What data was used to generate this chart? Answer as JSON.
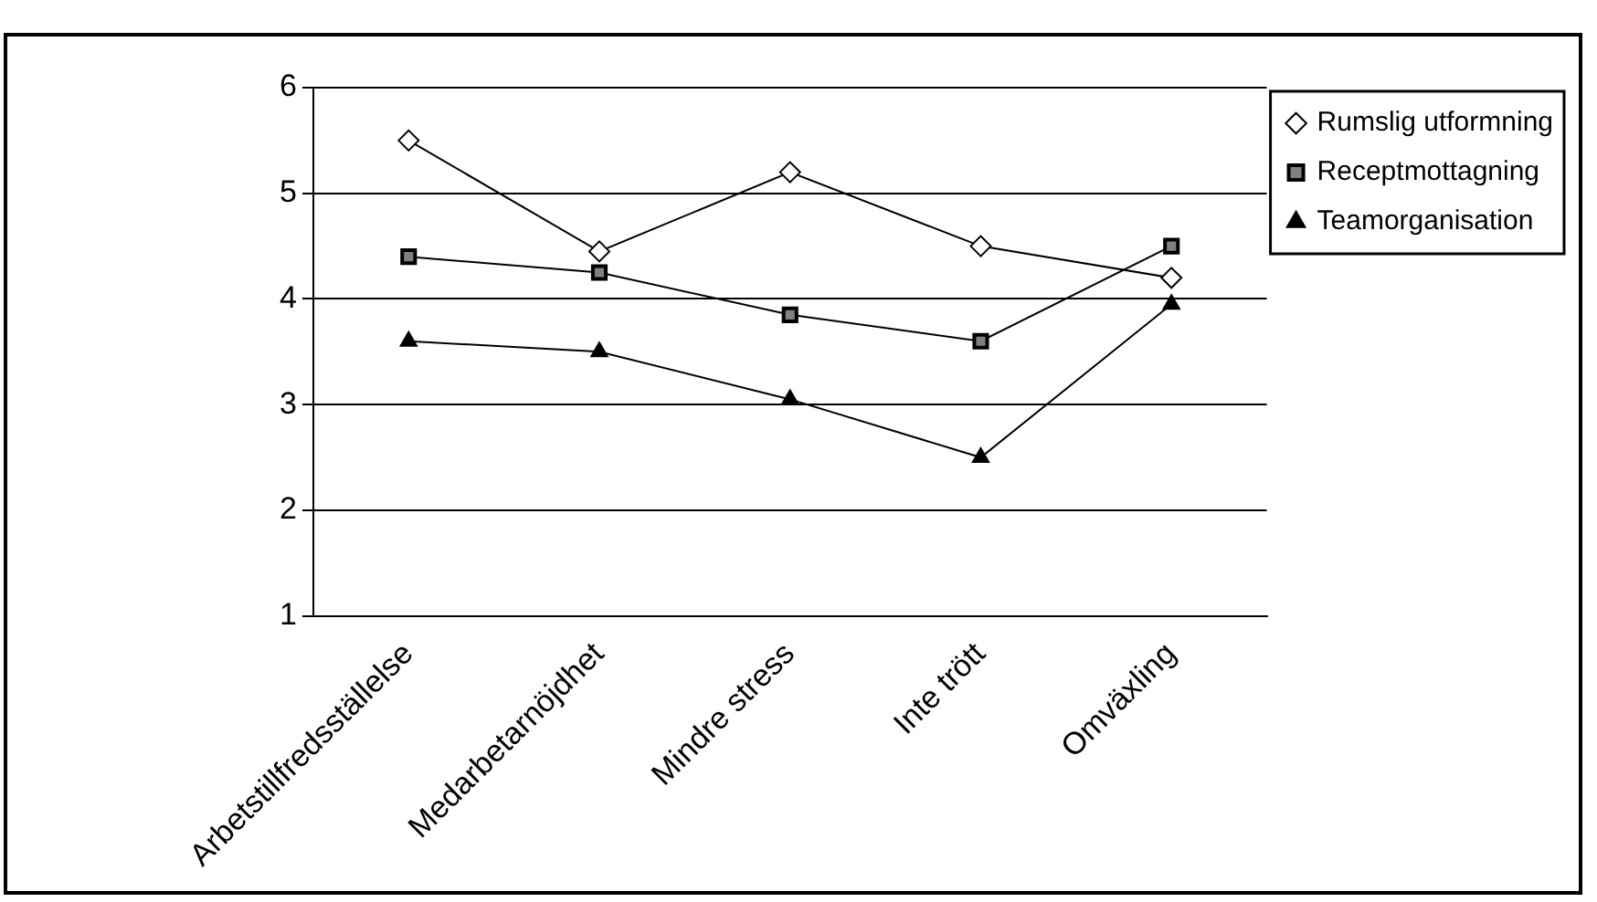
{
  "chart_data": {
    "type": "line",
    "categories": [
      "Arbetstillfredsställelse",
      "Medarbetarnöjdhet",
      "Mindre stress",
      "Inte trött",
      "Omväxling"
    ],
    "series": [
      {
        "name": "Rumslig utformning",
        "color": "#000000",
        "marker": "diamond",
        "values": [
          5.5,
          4.45,
          5.2,
          4.5,
          4.2
        ]
      },
      {
        "name": "Receptmottagning",
        "color": "#000000",
        "marker": "square",
        "values": [
          4.4,
          4.25,
          3.85,
          3.6,
          4.5
        ]
      },
      {
        "name": "Teamorganisation",
        "color": "#000000",
        "marker": "triangle",
        "values": [
          3.6,
          3.5,
          3.05,
          2.5,
          3.95
        ]
      }
    ],
    "ylim": [
      1,
      6
    ],
    "yticks": [
      1,
      2,
      3,
      4,
      5,
      6
    ],
    "grid": "y",
    "legend": "right"
  }
}
